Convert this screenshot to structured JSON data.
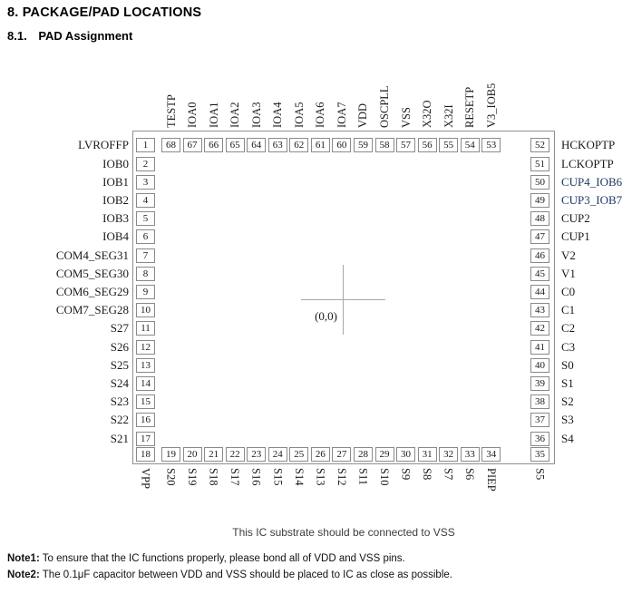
{
  "header": {
    "title": "8. PACKAGE/PAD LOCATIONS",
    "section_number": "8.1.",
    "section_title": "PAD Assignment"
  },
  "diagram": {
    "origin_label": "(0,0)",
    "substrate_note": "This IC substrate should be connected to VSS",
    "highlight_color": "#1F3864",
    "pads": {
      "top": [
        {
          "num": 68,
          "label": "TESTP"
        },
        {
          "num": 67,
          "label": "IOA0"
        },
        {
          "num": 66,
          "label": "IOA1"
        },
        {
          "num": 65,
          "label": "IOA2"
        },
        {
          "num": 64,
          "label": "IOA3"
        },
        {
          "num": 63,
          "label": "IOA4"
        },
        {
          "num": 62,
          "label": "IOA5"
        },
        {
          "num": 61,
          "label": "IOA6"
        },
        {
          "num": 60,
          "label": "IOA7"
        },
        {
          "num": 59,
          "label": "VDD"
        },
        {
          "num": 58,
          "label": "OSCPLL"
        },
        {
          "num": 57,
          "label": "VSS"
        },
        {
          "num": 56,
          "label": "X32O"
        },
        {
          "num": 55,
          "label": "X32I"
        },
        {
          "num": 54,
          "label": "RESETP"
        },
        {
          "num": 53,
          "label": "V3_IOB5"
        }
      ],
      "left": [
        {
          "num": 1,
          "label": "LVROFFP"
        },
        {
          "num": 2,
          "label": "IOB0"
        },
        {
          "num": 3,
          "label": "IOB1"
        },
        {
          "num": 4,
          "label": "IOB2"
        },
        {
          "num": 5,
          "label": "IOB3"
        },
        {
          "num": 6,
          "label": "IOB4"
        },
        {
          "num": 7,
          "label": "COM4_SEG31"
        },
        {
          "num": 8,
          "label": "COM5_SEG30"
        },
        {
          "num": 9,
          "label": "COM6_SEG29"
        },
        {
          "num": 10,
          "label": "COM7_SEG28"
        },
        {
          "num": 11,
          "label": "S27"
        },
        {
          "num": 12,
          "label": "S26"
        },
        {
          "num": 13,
          "label": "S25"
        },
        {
          "num": 14,
          "label": "S24"
        },
        {
          "num": 15,
          "label": "S23"
        },
        {
          "num": 16,
          "label": "S22"
        },
        {
          "num": 17,
          "label": "S21"
        }
      ],
      "right": [
        {
          "num": 52,
          "label": "HCKOPTP"
        },
        {
          "num": 51,
          "label": "LCKOPTP"
        },
        {
          "num": 50,
          "label": "CUP4_IOB6",
          "color": "#1F3864"
        },
        {
          "num": 49,
          "label": "CUP3_IOB7",
          "color": "#1F3864"
        },
        {
          "num": 48,
          "label": "CUP2"
        },
        {
          "num": 47,
          "label": "CUP1"
        },
        {
          "num": 46,
          "label": "V2"
        },
        {
          "num": 45,
          "label": "V1"
        },
        {
          "num": 44,
          "label": "C0"
        },
        {
          "num": 43,
          "label": "C1"
        },
        {
          "num": 42,
          "label": "C2"
        },
        {
          "num": 41,
          "label": "C3"
        },
        {
          "num": 40,
          "label": "S0"
        },
        {
          "num": 39,
          "label": "S1"
        },
        {
          "num": 38,
          "label": "S2"
        },
        {
          "num": 37,
          "label": "S3"
        },
        {
          "num": 36,
          "label": "S4"
        }
      ],
      "bottom": [
        {
          "num": 18,
          "label": "VPP"
        },
        {
          "num": 19,
          "label": "S20"
        },
        {
          "num": 20,
          "label": "S19"
        },
        {
          "num": 21,
          "label": "S18"
        },
        {
          "num": 22,
          "label": "S17"
        },
        {
          "num": 23,
          "label": "S16"
        },
        {
          "num": 24,
          "label": "S15"
        },
        {
          "num": 25,
          "label": "S14"
        },
        {
          "num": 26,
          "label": "S13"
        },
        {
          "num": 27,
          "label": "S12"
        },
        {
          "num": 28,
          "label": "S11"
        },
        {
          "num": 29,
          "label": "S10"
        },
        {
          "num": 30,
          "label": "S9"
        },
        {
          "num": 31,
          "label": "S8"
        },
        {
          "num": 32,
          "label": "S7"
        },
        {
          "num": 33,
          "label": "S6"
        },
        {
          "num": 34,
          "label": "PIEP"
        },
        {
          "num": 35,
          "label": "S5"
        }
      ]
    }
  },
  "notes": [
    {
      "label": "Note1:",
      "text": "To ensure that the IC functions properly, please bond all of VDD and VSS pins."
    },
    {
      "label": "Note2:",
      "text": "The 0.1μF capacitor between VDD and VSS should be placed to IC as close as possible."
    }
  ]
}
